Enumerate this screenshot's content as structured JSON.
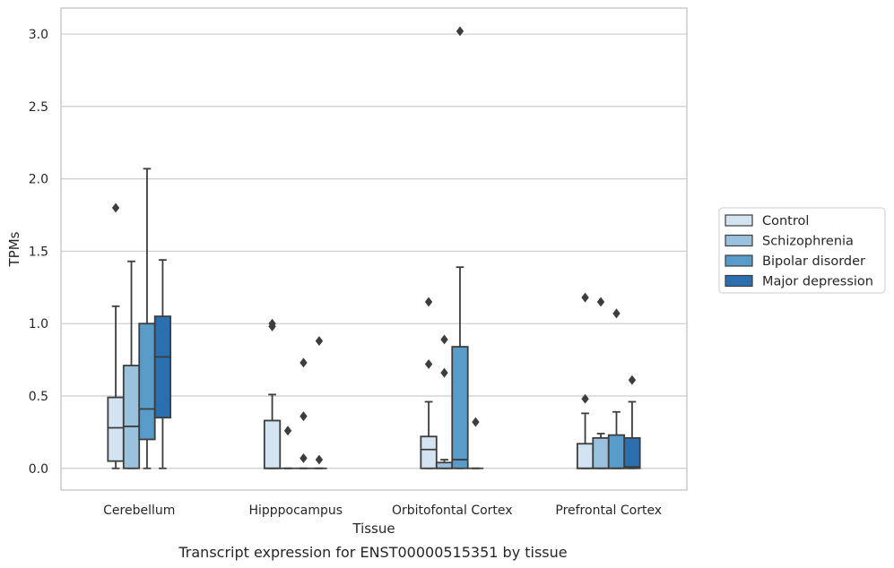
{
  "caption": "Transcript expression for ENST00000515351 by tissue",
  "chart_data": {
    "type": "box",
    "xlabel": "Tissue",
    "ylabel": "TPMs",
    "ylim": [
      -0.15,
      3.18
    ],
    "yticks": [
      "0.0",
      "0.5",
      "1.0",
      "1.5",
      "2.0",
      "2.5",
      "3.0"
    ],
    "ytick_values": [
      0,
      0.5,
      1.0,
      1.5,
      2.0,
      2.5,
      3.0
    ],
    "grid": "horizontal",
    "legend_position": "right",
    "categories": [
      "Cerebellum",
      "Hipppocampus",
      "Orbitofontal Cortex",
      "Prefrontal Cortex"
    ],
    "series": [
      {
        "name": "Control",
        "color": "#d3e3f2",
        "boxes": [
          {
            "q1": 0.05,
            "median": 0.28,
            "q3": 0.49,
            "whisker_low": 0.0,
            "whisker_high": 1.12,
            "fliers": [
              1.8
            ]
          },
          {
            "q1": 0.0,
            "median": 0.0,
            "q3": 0.33,
            "whisker_low": 0.0,
            "whisker_high": 0.51,
            "fliers": [
              0.98,
              1.0
            ]
          },
          {
            "q1": 0.0,
            "median": 0.13,
            "q3": 0.22,
            "whisker_low": 0.0,
            "whisker_high": 0.46,
            "fliers": [
              0.72,
              1.15
            ]
          },
          {
            "q1": 0.0,
            "median": 0.0,
            "q3": 0.17,
            "whisker_low": 0.0,
            "whisker_high": 0.38,
            "fliers": [
              0.48,
              1.18
            ]
          }
        ]
      },
      {
        "name": "Schizophrenia",
        "color": "#9ac2de",
        "boxes": [
          {
            "q1": 0.0,
            "median": 0.29,
            "q3": 0.71,
            "whisker_low": 0.0,
            "whisker_high": 1.43,
            "fliers": []
          },
          {
            "q1": 0.0,
            "median": 0.0,
            "q3": 0.0,
            "whisker_low": 0.0,
            "whisker_high": 0.0,
            "fliers": [
              0.26
            ]
          },
          {
            "q1": 0.0,
            "median": 0.0,
            "q3": 0.04,
            "whisker_low": 0.0,
            "whisker_high": 0.06,
            "fliers": [
              0.66,
              0.89
            ]
          },
          {
            "q1": 0.0,
            "median": 0.0,
            "q3": 0.21,
            "whisker_low": 0.0,
            "whisker_high": 0.24,
            "fliers": [
              1.15
            ]
          }
        ]
      },
      {
        "name": "Bipolar disorder",
        "color": "#5a9cc9",
        "boxes": [
          {
            "q1": 0.2,
            "median": 0.41,
            "q3": 1.0,
            "whisker_low": 0.0,
            "whisker_high": 2.07,
            "fliers": []
          },
          {
            "q1": 0.0,
            "median": 0.0,
            "q3": 0.0,
            "whisker_low": 0.0,
            "whisker_high": 0.0,
            "fliers": [
              0.07,
              0.36,
              0.73
            ]
          },
          {
            "q1": 0.0,
            "median": 0.06,
            "q3": 0.84,
            "whisker_low": 0.0,
            "whisker_high": 1.39,
            "fliers": [
              3.02
            ]
          },
          {
            "q1": 0.0,
            "median": 0.0,
            "q3": 0.23,
            "whisker_low": 0.0,
            "whisker_high": 0.39,
            "fliers": [
              1.07
            ]
          }
        ]
      },
      {
        "name": "Major depression",
        "color": "#2b6faf",
        "boxes": [
          {
            "q1": 0.35,
            "median": 0.77,
            "q3": 1.05,
            "whisker_low": 0.0,
            "whisker_high": 1.44,
            "fliers": []
          },
          {
            "q1": 0.0,
            "median": 0.0,
            "q3": 0.0,
            "whisker_low": 0.0,
            "whisker_high": 0.0,
            "fliers": [
              0.06,
              0.88
            ]
          },
          {
            "q1": 0.0,
            "median": 0.0,
            "q3": 0.0,
            "whisker_low": 0.0,
            "whisker_high": 0.0,
            "fliers": [
              0.32
            ]
          },
          {
            "q1": 0.0,
            "median": 0.01,
            "q3": 0.21,
            "whisker_low": 0.0,
            "whisker_high": 0.46,
            "fliers": [
              0.61
            ]
          }
        ]
      }
    ]
  }
}
